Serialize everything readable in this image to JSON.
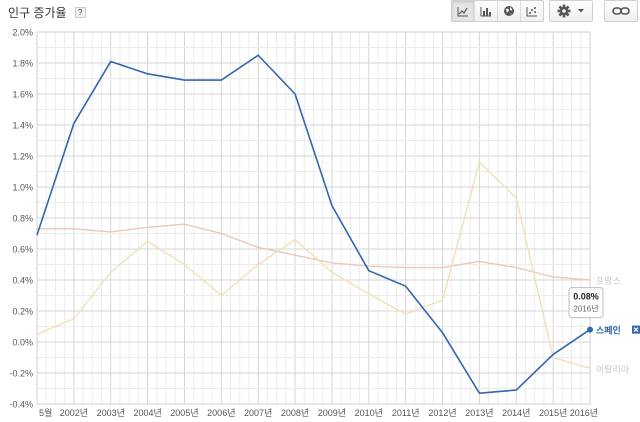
{
  "header": {
    "title": "인구 증가율",
    "help_label": "?"
  },
  "toolbar": {
    "chart_types": [
      "line-chart-icon",
      "bar-chart-icon",
      "globe-map-icon",
      "scatter-chart-icon"
    ],
    "settings_icon": "gear-icon",
    "dropdown_icon": "caret-down-icon",
    "link_icon": "chain-link-icon"
  },
  "chart_data": {
    "type": "line",
    "title": "",
    "xlabel": "",
    "ylabel": "",
    "x_ticks": [
      "5월",
      "2002년",
      "2003년",
      "2004년",
      "2005년",
      "2006년",
      "2007년",
      "2008년",
      "2009년",
      "2010년",
      "2011년",
      "2012년",
      "2013년",
      "2014년",
      "2015년",
      "2016년"
    ],
    "y_ticks": [
      "2.0%",
      "1.8%",
      "1.6%",
      "1.4%",
      "1.2%",
      "1.0%",
      "0.8%",
      "0.6%",
      "0.4%",
      "0.2%",
      "0.0%",
      "-0.2%",
      "-0.4%"
    ],
    "ylim": [
      -0.4,
      2.0
    ],
    "xlim": [
      2001.0,
      2016.0
    ],
    "grid": true,
    "legend_position": "right, at line ends",
    "series": [
      {
        "name": "스페인",
        "color": "#3366aa",
        "highlighted": true,
        "x": [
          2001.0,
          2002.0,
          2003.0,
          2004.0,
          2005.0,
          2006.0,
          2007.0,
          2008.0,
          2009.0,
          2010.0,
          2011.0,
          2012.0,
          2013.0,
          2014.0,
          2015.0,
          2016.0
        ],
        "y": [
          0.69,
          1.41,
          1.81,
          1.73,
          1.69,
          1.69,
          1.85,
          1.6,
          0.88,
          0.46,
          0.36,
          0.06,
          -0.33,
          -0.31,
          -0.08,
          0.08
        ]
      },
      {
        "name": "프랑스",
        "color": "#e8c8bc",
        "highlighted": false,
        "x": [
          2001.0,
          2002.0,
          2003.0,
          2004.0,
          2005.0,
          2006.0,
          2007.0,
          2008.0,
          2009.0,
          2010.0,
          2011.0,
          2012.0,
          2013.0,
          2014.0,
          2015.0,
          2016.0
        ],
        "y": [
          0.73,
          0.73,
          0.71,
          0.74,
          0.76,
          0.7,
          0.61,
          0.56,
          0.51,
          0.49,
          0.48,
          0.48,
          0.52,
          0.48,
          0.42,
          0.4
        ]
      },
      {
        "name": "이탈리아",
        "color": "#f2dfb6",
        "highlighted": false,
        "x": [
          2001.0,
          2002.0,
          2003.0,
          2004.0,
          2005.0,
          2006.0,
          2007.0,
          2008.0,
          2009.0,
          2010.0,
          2011.0,
          2012.0,
          2013.0,
          2014.0,
          2015.0,
          2016.0
        ],
        "y": [
          0.05,
          0.15,
          0.45,
          0.65,
          0.5,
          0.3,
          0.5,
          0.66,
          0.45,
          0.31,
          0.18,
          0.27,
          1.16,
          0.93,
          -0.1,
          -0.17
        ]
      }
    ],
    "tooltip": {
      "value": "0.08%",
      "year": "2016년"
    }
  }
}
